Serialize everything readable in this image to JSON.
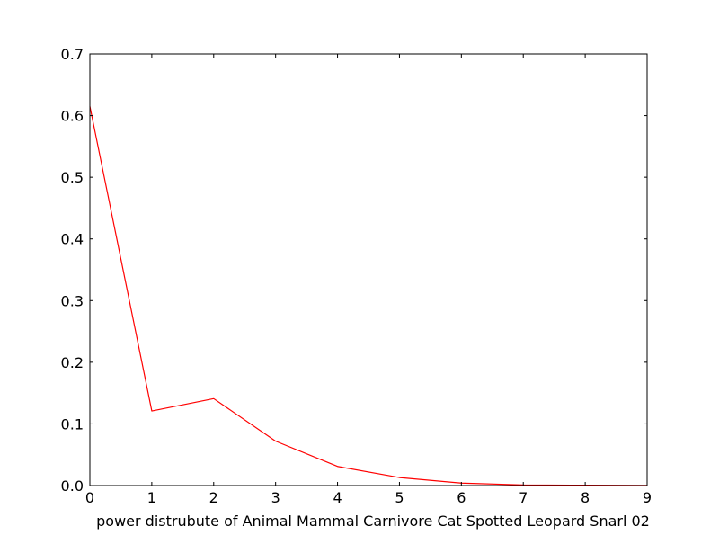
{
  "chart_data": {
    "type": "line",
    "title": "",
    "xlabel": "power distrubute of Animal Mammal Carnivore Cat Spotted Leopard Snarl 02",
    "ylabel": "",
    "xlim": [
      0,
      9
    ],
    "ylim": [
      0,
      0.7
    ],
    "x_ticks": [
      0,
      1,
      2,
      3,
      4,
      5,
      6,
      7,
      8,
      9
    ],
    "y_ticks": [
      0.0,
      0.1,
      0.2,
      0.3,
      0.4,
      0.5,
      0.6,
      0.7
    ],
    "x_tick_labels": [
      "0",
      "1",
      "2",
      "3",
      "4",
      "5",
      "6",
      "7",
      "8",
      "9"
    ],
    "y_tick_labels": [
      "0.0",
      "0.1",
      "0.2",
      "0.3",
      "0.4",
      "0.5",
      "0.6",
      "0.7"
    ],
    "grid": false,
    "series": [
      {
        "color": "#ff0000",
        "x": [
          0,
          1,
          2,
          3,
          4,
          5,
          6,
          7,
          8,
          9
        ],
        "values": [
          0.615,
          0.121,
          0.141,
          0.072,
          0.031,
          0.013,
          0.004,
          0.001,
          0.0005,
          0.0002
        ]
      }
    ]
  }
}
